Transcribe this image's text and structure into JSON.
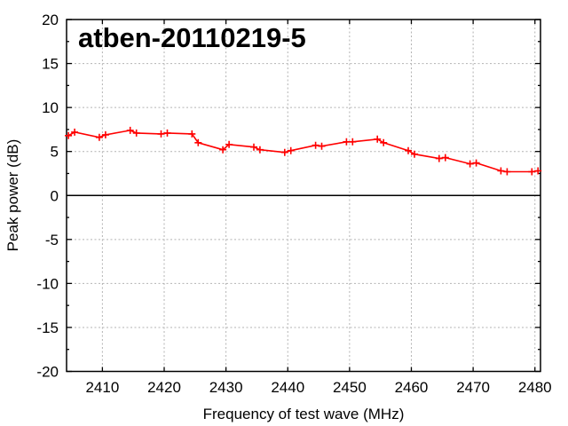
{
  "chart_data": {
    "type": "line",
    "title": "atben-20110219-5",
    "xlabel": "Frequency of test wave (MHz)",
    "ylabel": "Peak power (dB)",
    "x": [
      2404.5,
      2405.5,
      2409.5,
      2410.5,
      2414.5,
      2415.5,
      2419.5,
      2420.5,
      2424.5,
      2425.5,
      2429.5,
      2430.5,
      2434.5,
      2435.5,
      2439.5,
      2440.5,
      2444.5,
      2445.5,
      2449.5,
      2450.5,
      2454.5,
      2455.5,
      2459.5,
      2460.5,
      2464.5,
      2465.5,
      2469.5,
      2470.5,
      2474.5,
      2475.5,
      2479.5,
      2480.5
    ],
    "y": [
      6.8,
      7.2,
      6.6,
      6.9,
      7.4,
      7.1,
      7.0,
      7.1,
      7.0,
      6.0,
      5.2,
      5.8,
      5.5,
      5.2,
      4.9,
      5.1,
      5.7,
      5.6,
      6.1,
      6.1,
      6.4,
      6.0,
      5.1,
      4.7,
      4.2,
      4.3,
      3.6,
      3.7,
      2.8,
      2.7,
      2.7,
      2.8
    ],
    "xticks": [
      2410,
      2420,
      2430,
      2440,
      2450,
      2460,
      2470,
      2480
    ],
    "yticks": [
      -20,
      -15,
      -10,
      -5,
      0,
      5,
      10,
      15,
      20
    ],
    "xlim": [
      2404.2,
      2480.9
    ],
    "ylim": [
      -20,
      20
    ],
    "grid": true,
    "zeroaxis": true,
    "legend_position": "none",
    "marker": "plus",
    "colors": {
      "series": "#ff0000",
      "grid": "#b3b3b3",
      "axis": "#000000",
      "background": "#ffffff"
    }
  }
}
